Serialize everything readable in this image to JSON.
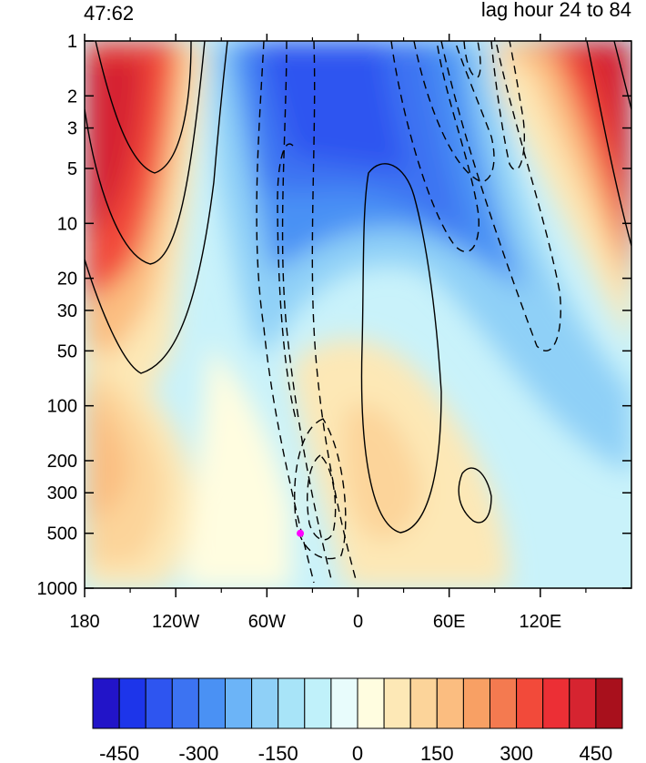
{
  "header": {
    "left": "47:62",
    "right": "lag hour 24 to 84"
  },
  "chart_data": {
    "type": "heatmap",
    "title": "",
    "xlabel": "",
    "ylabel": "",
    "x_ticks": [
      "180",
      "120W",
      "60W",
      "0",
      "60E",
      "120E"
    ],
    "y_ticks": [
      "1",
      "2",
      "3",
      "5",
      "10",
      "20",
      "30",
      "50",
      "100",
      "200",
      "300",
      "500",
      "1000"
    ],
    "y_scale": "log",
    "ylim": [
      1000,
      1
    ],
    "xlim": [
      -180,
      180
    ],
    "colorbar": {
      "levels": [
        -500,
        -450,
        -400,
        -350,
        -300,
        -250,
        -200,
        -150,
        -100,
        -50,
        0,
        50,
        100,
        150,
        200,
        250,
        300,
        350,
        400,
        450,
        500
      ],
      "tick_labels": [
        "-450",
        "-300",
        "-150",
        "0",
        "150",
        "300",
        "450"
      ],
      "colors": [
        "#2214c8",
        "#1d35ea",
        "#2e55f0",
        "#3c73f2",
        "#4a91f4",
        "#6cb4f7",
        "#8fd0f7",
        "#a8e4f8",
        "#c0f1fa",
        "#e8fcfc",
        "#fffde0",
        "#fde8b6",
        "#fcd49a",
        "#fbbd80",
        "#f8a064",
        "#f47a50",
        "#f24a3a",
        "#ec2f35",
        "#d62430",
        "#a8101c"
      ]
    },
    "marker": {
      "lon": -38,
      "pressure": 500,
      "color": "#ff00ff"
    }
  }
}
